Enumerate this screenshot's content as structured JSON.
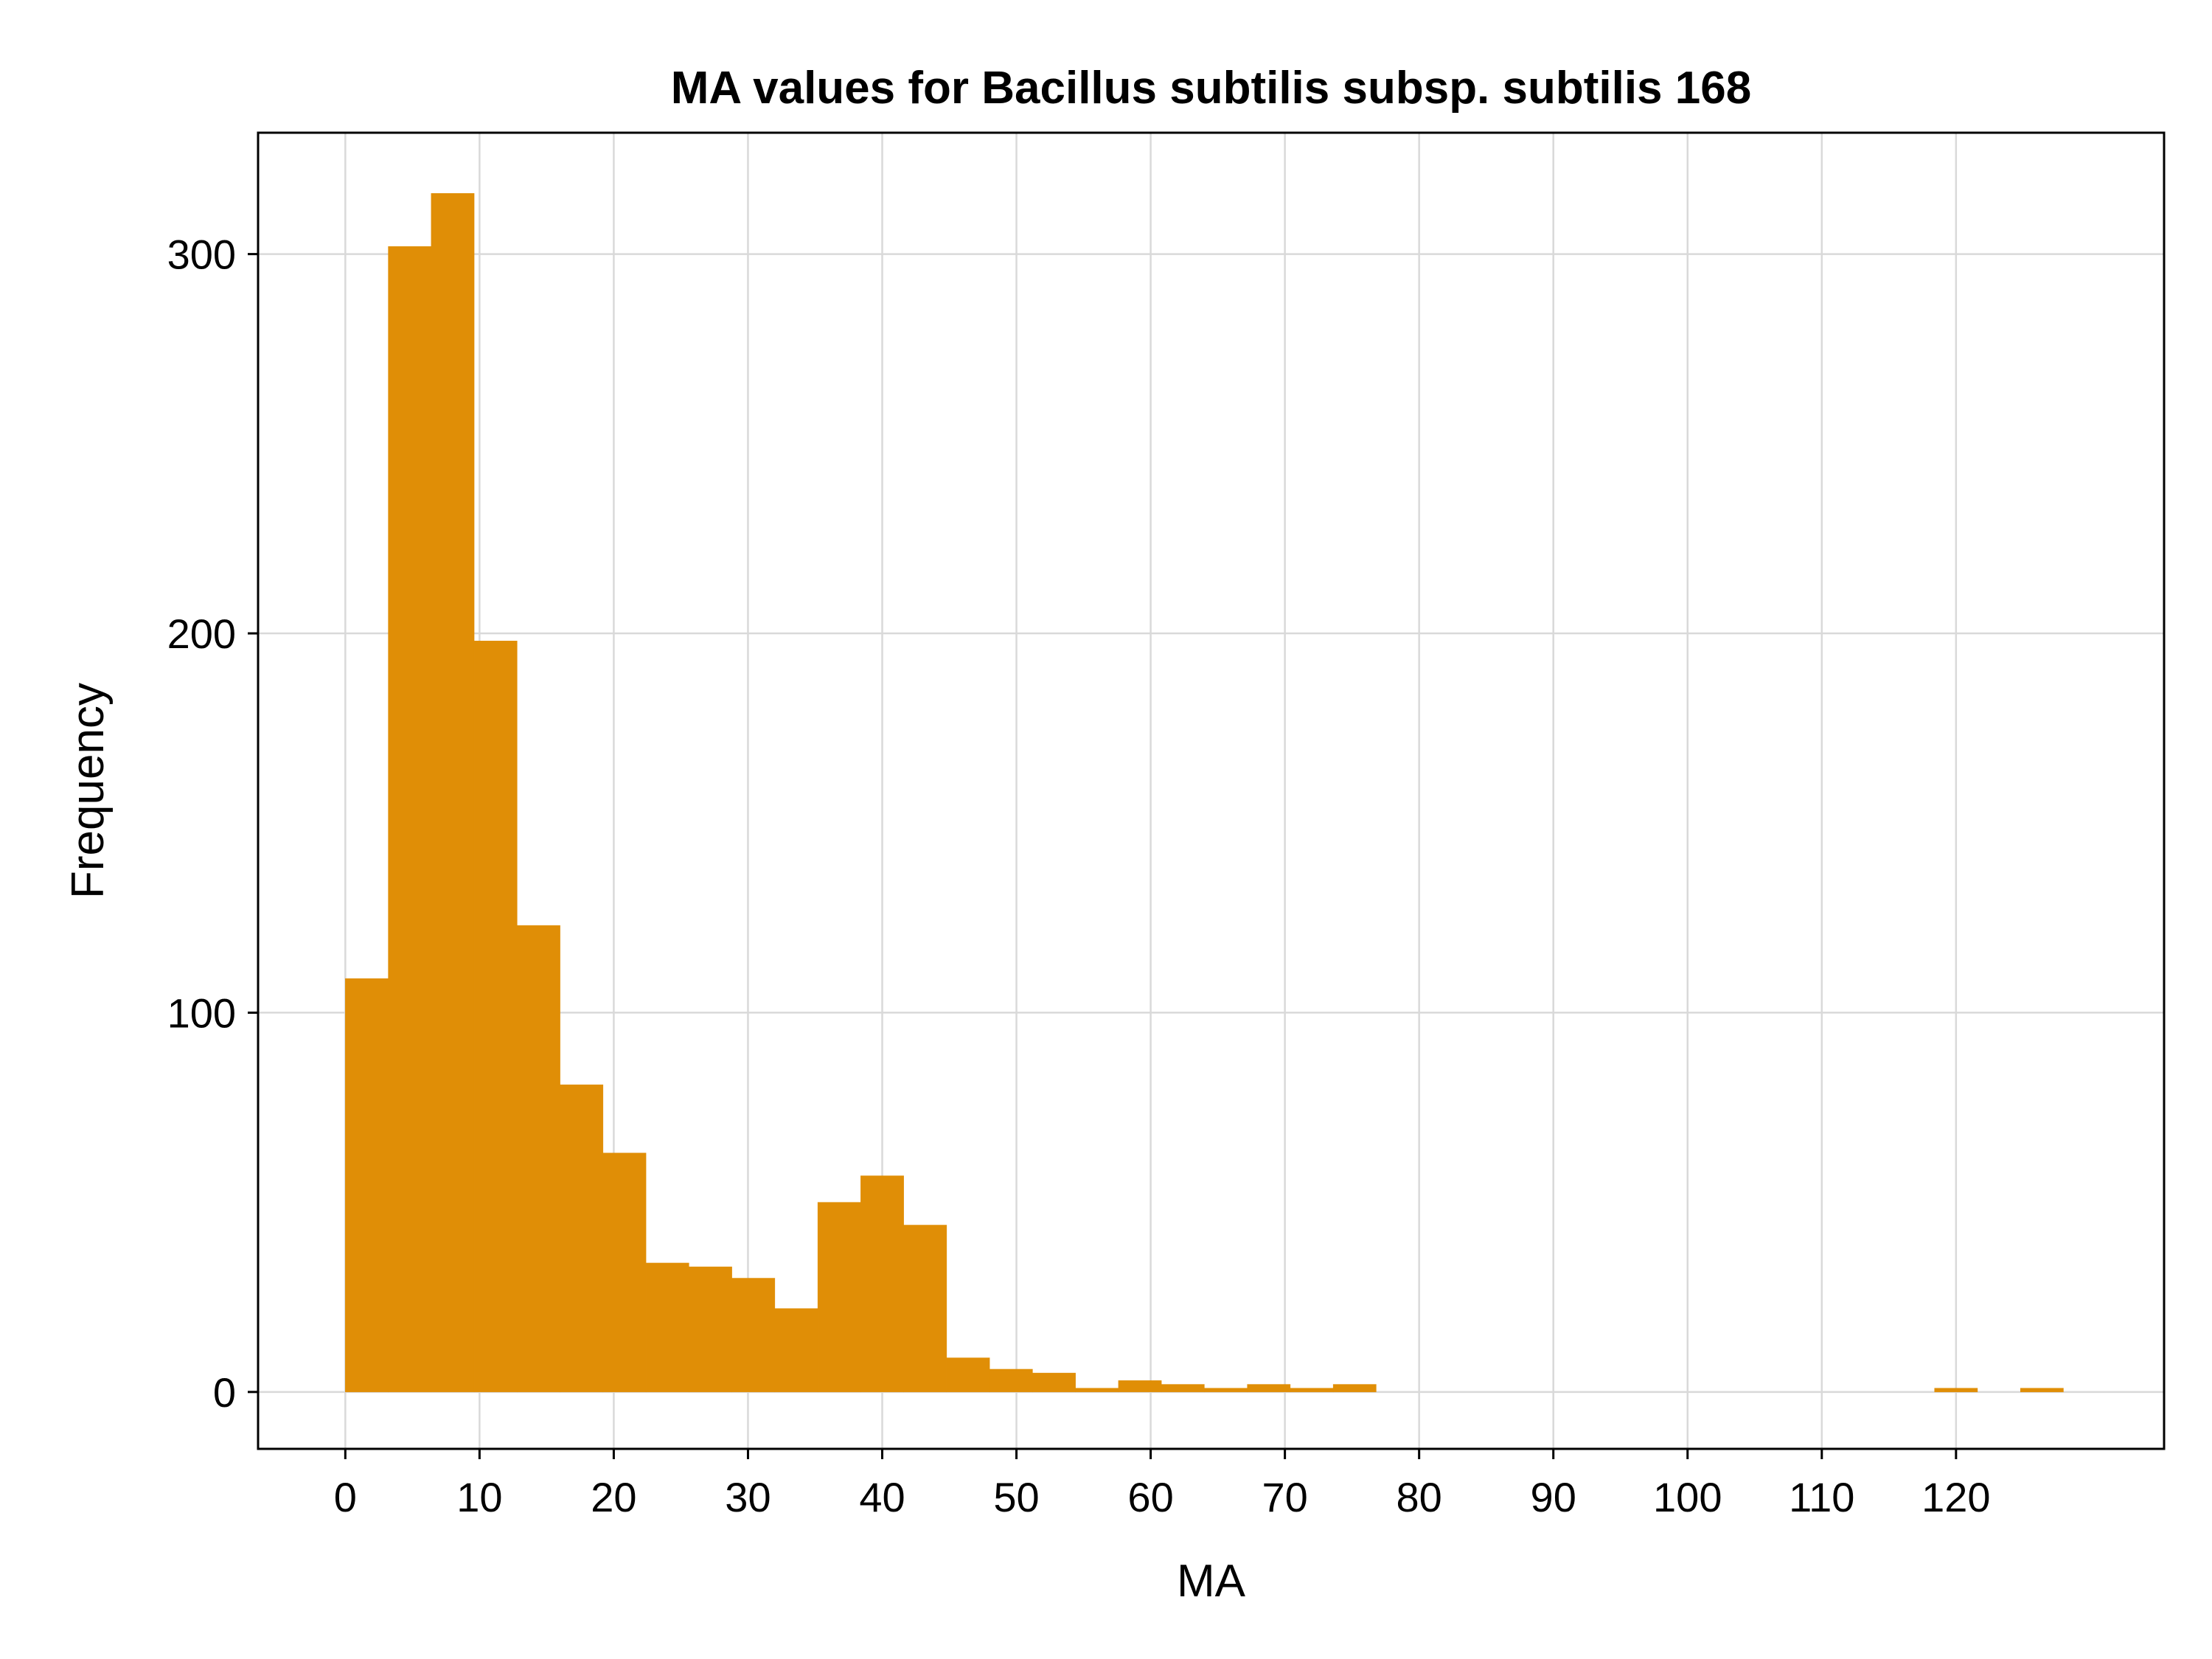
{
  "chart_data": {
    "type": "bar",
    "title": "MA values for Bacillus subtilis subsp. subtilis 168",
    "xlabel": "MA",
    "ylabel": "Frequency",
    "bin_width": 3.2,
    "bins": [
      {
        "start": 0.0,
        "end": 3.2,
        "count": 109
      },
      {
        "start": 3.2,
        "end": 6.4,
        "count": 302
      },
      {
        "start": 6.4,
        "end": 9.6,
        "count": 316
      },
      {
        "start": 9.6,
        "end": 12.8,
        "count": 198
      },
      {
        "start": 12.8,
        "end": 16.0,
        "count": 123
      },
      {
        "start": 16.0,
        "end": 19.2,
        "count": 81
      },
      {
        "start": 19.2,
        "end": 22.4,
        "count": 63
      },
      {
        "start": 22.4,
        "end": 25.6,
        "count": 34
      },
      {
        "start": 25.6,
        "end": 28.8,
        "count": 33
      },
      {
        "start": 28.8,
        "end": 32.0,
        "count": 30
      },
      {
        "start": 32.0,
        "end": 35.2,
        "count": 22
      },
      {
        "start": 35.2,
        "end": 38.4,
        "count": 50
      },
      {
        "start": 38.4,
        "end": 41.6,
        "count": 57
      },
      {
        "start": 41.6,
        "end": 44.8,
        "count": 44
      },
      {
        "start": 44.8,
        "end": 48.0,
        "count": 9
      },
      {
        "start": 48.0,
        "end": 51.2,
        "count": 6
      },
      {
        "start": 51.2,
        "end": 54.4,
        "count": 5
      },
      {
        "start": 54.4,
        "end": 57.6,
        "count": 1
      },
      {
        "start": 57.6,
        "end": 60.8,
        "count": 3
      },
      {
        "start": 60.8,
        "end": 64.0,
        "count": 2
      },
      {
        "start": 64.0,
        "end": 67.2,
        "count": 1
      },
      {
        "start": 67.2,
        "end": 70.4,
        "count": 2
      },
      {
        "start": 70.4,
        "end": 73.6,
        "count": 1
      },
      {
        "start": 73.6,
        "end": 76.8,
        "count": 2
      },
      {
        "start": 118.4,
        "end": 121.6,
        "count": 1
      },
      {
        "start": 124.8,
        "end": 128.0,
        "count": 1
      }
    ],
    "xlim": [
      -6.5,
      135.5
    ],
    "ylim": [
      -15,
      332
    ],
    "xticks": [
      0,
      10,
      20,
      30,
      40,
      50,
      60,
      70,
      80,
      90,
      100,
      110,
      120
    ],
    "yticks": [
      0,
      100,
      200,
      300
    ],
    "grid": true,
    "legend": "none",
    "colors": {
      "bar": "#e08e06",
      "grid": "#d9d9d9",
      "axis": "#000000"
    }
  }
}
